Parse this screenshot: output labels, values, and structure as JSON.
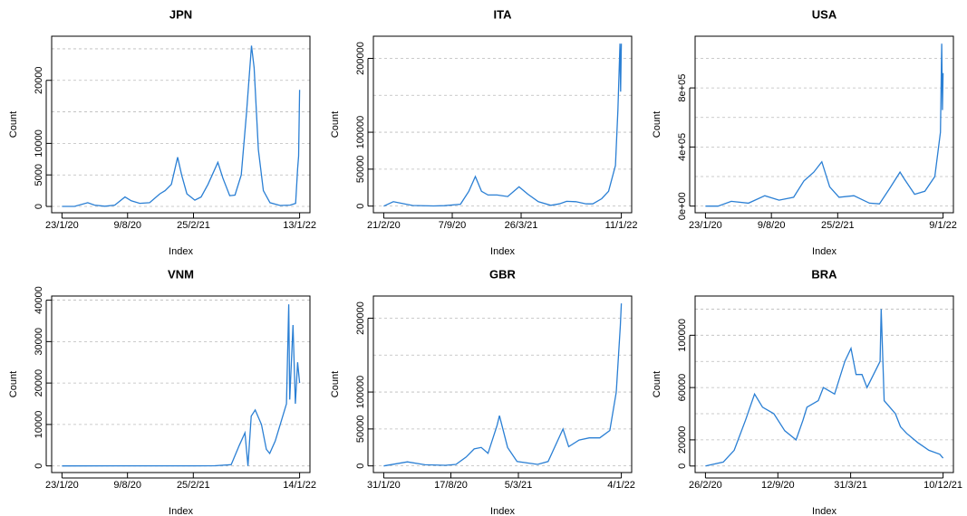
{
  "chart_data": [
    {
      "type": "line",
      "title": "JPN",
      "xlabel": "Index",
      "ylabel": "Count",
      "color": "#2a7fd4",
      "x": [
        "23/1/20",
        "1/3/20",
        "10/4/20",
        "1/5/20",
        "1/6/20",
        "1/7/20",
        "1/8/20",
        "20/8/20",
        "15/9/20",
        "15/10/20",
        "15/11/20",
        "1/12/20",
        "20/12/20",
        "8/1/21",
        "20/1/21",
        "5/2/21",
        "1/3/21",
        "20/3/21",
        "10/4/21",
        "10/5/21",
        "25/5/21",
        "15/6/21",
        "1/7/21",
        "20/7/21",
        "5/8/21",
        "20/8/21",
        "28/8/21",
        "10/9/21",
        "25/9/21",
        "15/10/21",
        "15/11/21",
        "15/12/21",
        "1/1/22",
        "7/1/22",
        "10/1/22",
        "13/1/22"
      ],
      "values": [
        0,
        10,
        600,
        200,
        40,
        200,
        1500,
        900,
        500,
        600,
        2000,
        2500,
        3500,
        7800,
        5000,
        2000,
        1000,
        1500,
        3500,
        7000,
        4500,
        1700,
        1800,
        5000,
        15000,
        25500,
        22000,
        9000,
        2500,
        600,
        150,
        200,
        500,
        6000,
        8000,
        18500
      ],
      "xlim": [
        "23/1/20",
        "13/1/22"
      ],
      "xticks": [
        "23/1/20",
        "9/8/20",
        "25/2/21",
        "13/1/22"
      ],
      "ylim": [
        -1000,
        27000
      ],
      "yticks": [
        0,
        5000,
        10000,
        20000
      ],
      "ygrid": [
        0,
        5000,
        10000,
        15000,
        20000,
        25000
      ]
    },
    {
      "type": "line",
      "title": "ITA",
      "xlabel": "Index",
      "ylabel": "Count",
      "color": "#2a7fd4",
      "x": [
        "21/2/20",
        "20/3/20",
        "15/4/20",
        "15/5/20",
        "15/7/20",
        "15/8/20",
        "1/10/20",
        "25/10/20",
        "13/11/20",
        "1/12/20",
        "20/12/20",
        "15/1/21",
        "15/2/21",
        "20/3/21",
        "15/4/21",
        "15/5/21",
        "20/6/21",
        "15/7/21",
        "5/8/21",
        "1/9/21",
        "1/10/21",
        "20/10/21",
        "15/11/21",
        "5/12/21",
        "25/12/21",
        "1/1/22",
        "7/1/22",
        "9/1/22",
        "11/1/22"
      ],
      "values": [
        0,
        6000,
        3500,
        800,
        200,
        600,
        2500,
        20000,
        40000,
        20000,
        15000,
        15000,
        13000,
        26000,
        16000,
        6000,
        1000,
        3000,
        6500,
        6000,
        3000,
        3000,
        10000,
        20000,
        55000,
        130000,
        220000,
        155000,
        220000
      ],
      "xlim": [
        "21/2/20",
        "11/1/22"
      ],
      "xticks": [
        "21/2/20",
        "7/9/20",
        "26/3/21",
        "11/1/22"
      ],
      "ylim": [
        -9000,
        230000
      ],
      "yticks": [
        0,
        50000,
        100000,
        200000
      ],
      "ygrid": [
        0,
        50000,
        100000,
        150000,
        200000
      ]
    },
    {
      "type": "line",
      "title": "USA",
      "xlabel": "Index",
      "ylabel": "Count",
      "color": "#2a7fd4",
      "x": [
        "23/1/20",
        "1/3/20",
        "10/4/20",
        "1/6/20",
        "20/7/20",
        "1/9/20",
        "15/10/20",
        "15/11/20",
        "15/12/20",
        "8/1/21",
        "1/2/21",
        "1/3/21",
        "15/4/21",
        "1/6/21",
        "1/7/21",
        "1/8/21",
        "1/9/21",
        "15/9/21",
        "15/10/21",
        "15/11/21",
        "15/12/21",
        "1/1/22",
        "5/1/22",
        "7/1/22",
        "9/1/22"
      ],
      "values": [
        0,
        0,
        32000,
        20000,
        70000,
        40000,
        60000,
        170000,
        230000,
        300000,
        130000,
        60000,
        70000,
        20000,
        15000,
        120000,
        230000,
        180000,
        80000,
        100000,
        200000,
        500000,
        1100000,
        650000,
        900000
      ],
      "xlim": [
        "23/1/20",
        "9/1/22"
      ],
      "xticks": [
        "23/1/20",
        "9/8/20",
        "25/2/21",
        "9/1/22"
      ],
      "ylim": [
        -45000,
        1150000
      ],
      "yticks": [
        {
          "value": 0,
          "label": "0e+00"
        },
        {
          "value": 400000,
          "label": "4e+05"
        },
        {
          "value": 800000,
          "label": "8e+05"
        }
      ],
      "ygrid": [
        0,
        200000,
        400000,
        600000,
        800000,
        1000000
      ]
    },
    {
      "type": "line",
      "title": "VNM",
      "xlabel": "Index",
      "ylabel": "Count",
      "color": "#2a7fd4",
      "x": [
        "23/1/20",
        "1/3/21",
        "1/5/21",
        "20/6/21",
        "15/7/21",
        "1/8/21",
        "10/8/21",
        "20/8/21",
        "1/9/21",
        "20/9/21",
        "5/10/21",
        "15/10/21",
        "1/11/21",
        "20/11/21",
        "5/12/21",
        "12/12/21",
        "15/12/21",
        "25/12/21",
        "1/1/22",
        "8/1/22",
        "14/1/22"
      ],
      "values": [
        0,
        10,
        30,
        300,
        5000,
        8000,
        0,
        12000,
        13500,
        10000,
        4000,
        3000,
        6000,
        11000,
        15000,
        39000,
        16000,
        34000,
        15000,
        25000,
        20000
      ],
      "xlim": [
        "23/1/20",
        "14/1/22"
      ],
      "xticks": [
        "23/1/20",
        "9/8/20",
        "25/2/21",
        "14/1/22"
      ],
      "ylim": [
        -1600,
        41000
      ],
      "yticks": [
        0,
        10000,
        20000,
        30000,
        40000
      ],
      "ygrid": [
        0,
        10000,
        20000,
        30000,
        40000
      ]
    },
    {
      "type": "line",
      "title": "GBR",
      "xlabel": "Index",
      "ylabel": "Count",
      "color": "#2a7fd4",
      "x": [
        "31/1/20",
        "10/4/20",
        "1/6/20",
        "1/8/20",
        "1/9/20",
        "1/10/20",
        "25/10/20",
        "15/11/20",
        "5/12/20",
        "1/1/21",
        "8/1/21",
        "1/2/21",
        "1/3/21",
        "1/5/21",
        "1/6/21",
        "15/7/21",
        "1/8/21",
        "1/9/21",
        "1/10/21",
        "1/11/21",
        "1/12/21",
        "20/12/21",
        "1/1/22",
        "4/1/22"
      ],
      "values": [
        0,
        5500,
        1500,
        800,
        2000,
        12000,
        23000,
        25000,
        17000,
        55000,
        68000,
        25000,
        6000,
        2000,
        6000,
        50000,
        26000,
        35000,
        38000,
        38000,
        48000,
        100000,
        190000,
        220000
      ],
      "xlim": [
        "31/1/20",
        "4/1/22"
      ],
      "xticks": [
        "31/1/20",
        "17/8/20",
        "5/3/21",
        "4/1/22"
      ],
      "ylim": [
        -9000,
        230000
      ],
      "yticks": [
        0,
        50000,
        100000,
        200000
      ],
      "ygrid": [
        0,
        50000,
        100000,
        150000,
        200000
      ]
    },
    {
      "type": "line",
      "title": "BRA",
      "xlabel": "Index",
      "ylabel": "Count",
      "color": "#2a7fd4",
      "x": [
        "26/2/20",
        "15/4/20",
        "15/5/20",
        "15/6/20",
        "10/7/20",
        "1/8/20",
        "1/9/20",
        "1/10/20",
        "1/11/20",
        "20/11/20",
        "1/12/20",
        "1/1/21",
        "15/1/21",
        "15/2/21",
        "15/3/21",
        "1/4/21",
        "15/4/21",
        "1/5/21",
        "15/5/21",
        "20/6/21",
        "23/6/21",
        "1/7/21",
        "1/8/21",
        "15/8/21",
        "1/9/21",
        "1/10/21",
        "1/11/21",
        "1/12/21",
        "10/12/21"
      ],
      "values": [
        0,
        3000,
        12000,
        35000,
        55000,
        45000,
        40000,
        27000,
        20000,
        35000,
        45000,
        50000,
        60000,
        55000,
        80000,
        90000,
        70000,
        70000,
        60000,
        80000,
        120000,
        50000,
        40000,
        30000,
        25000,
        18000,
        12000,
        9000,
        6000
      ],
      "xlim": [
        "26/2/20",
        "10/12/21"
      ],
      "xticks": [
        "26/2/20",
        "12/9/20",
        "31/3/21",
        "10/12/21"
      ],
      "ylim": [
        -5000,
        130000
      ],
      "yticks": [
        0,
        20000,
        60000,
        100000
      ],
      "ygrid": [
        0,
        20000,
        40000,
        60000,
        80000,
        100000,
        120000
      ]
    }
  ]
}
